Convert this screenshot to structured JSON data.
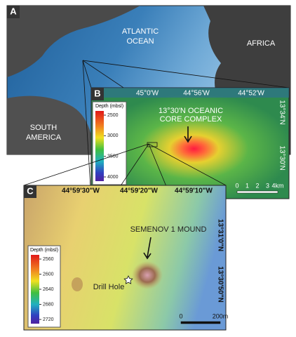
{
  "panels": [
    {
      "letter": "A",
      "labels": [
        [
          "ATLANTIC",
          "OCEAN"
        ],
        [
          "AFRICA"
        ],
        [
          "SOUTH",
          "AMERICA"
        ]
      ]
    },
    {
      "letter": "B",
      "longitudes": [
        "45°0'W",
        "44°56'W",
        "44°52'W"
      ],
      "latitudes": [
        "13°34'N",
        "13°30'N"
      ],
      "title": [
        "13°30'N OCEANIC",
        "CORE COMPLEX"
      ],
      "colorbar": {
        "title": "Depth (mbsl)",
        "ticks": [
          2500,
          3000,
          3500,
          4000
        ]
      },
      "scale": [
        "0",
        "1",
        "2",
        "3",
        "4km"
      ]
    },
    {
      "letter": "C",
      "longitudes": [
        "44°59'30\"W",
        "44°59'20\"W",
        "44°59'10\"W"
      ],
      "latitudes": [
        "13°31'0\"N",
        "13°30'50\"N"
      ],
      "title": [
        "SEMENOV 1 MOUND"
      ],
      "site": "Drill Hole",
      "colorbar": {
        "title": "Depth (mbsl)",
        "ticks": [
          2560,
          2600,
          2640,
          2680,
          2720
        ]
      },
      "scale": [
        "0",
        "200m"
      ]
    }
  ]
}
